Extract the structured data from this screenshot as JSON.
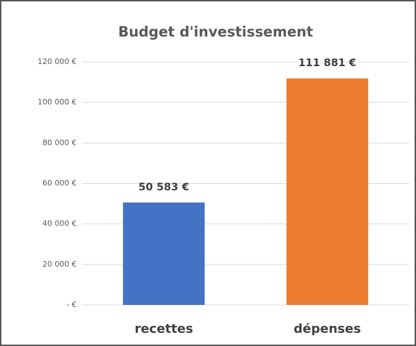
{
  "chart_data": {
    "type": "bar",
    "title": "Budget d'investissement",
    "categories": [
      "recettes",
      "dépenses"
    ],
    "values": [
      50583,
      111881
    ],
    "value_labels": [
      "50 583 €",
      "111 881 €"
    ],
    "colors": [
      "#4472c4",
      "#ed7d31"
    ],
    "ylim": [
      0,
      120000
    ],
    "yticks": [
      {
        "value": 0,
        "label": "-   €"
      },
      {
        "value": 20000,
        "label": "20 000 €"
      },
      {
        "value": 40000,
        "label": "40 000 €"
      },
      {
        "value": 60000,
        "label": "60 000 €"
      },
      {
        "value": 80000,
        "label": "80 000 €"
      },
      {
        "value": 100000,
        "label": "100 000 €"
      },
      {
        "value": 120000,
        "label": "120 000 €"
      }
    ],
    "grid": true
  }
}
